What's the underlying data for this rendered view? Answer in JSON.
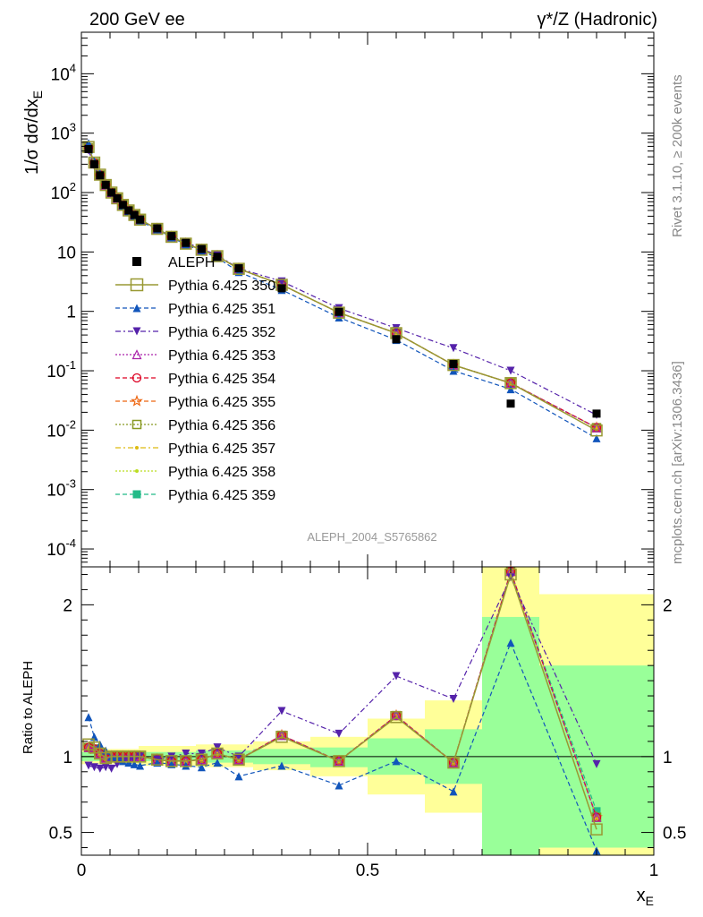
{
  "header": {
    "left": "200 GeV ee",
    "right": "γ*/Z (Hadronic)"
  },
  "side_text": {
    "rivet": "Rivet 3.1.10, ≥ 200k events",
    "mcplots": "mcplots.cern.ch [arXiv:1306.3436]"
  },
  "analysis_label": "ALEPH_2004_S5765862",
  "top_ylabel": "1/σ dσ/dx_E",
  "bottom_ylabel": "Ratio to ALEPH",
  "xlabel": "x_E",
  "colors": {
    "data": "#000000",
    "band_inner": "#99ff99",
    "band_outer": "#ffff99",
    "s350": "#999933",
    "s351": "#1155bb",
    "s352": "#5522aa",
    "s353": "#aa22aa",
    "s354": "#dd0022",
    "s355": "#ee6611",
    "s356": "#889922",
    "s357": "#ddbb11",
    "s358": "#bbdd22",
    "s359": "#22bb88"
  },
  "chart_data": [
    {
      "type": "scatter",
      "panel": "main",
      "xlabel": "x_E",
      "ylabel": "1/σ dσ/dx_E",
      "xlim": [
        0,
        1
      ],
      "ylim": [
        5e-05,
        50000
      ],
      "yscale": "log",
      "x_ticks": [
        "0",
        "0.5",
        "1"
      ],
      "y_ticks": [
        "10^-4",
        "10^-3",
        "10^-2",
        "10^-1",
        "1",
        "10",
        "10^2",
        "10^3",
        "10^4"
      ],
      "x": [
        0.0125,
        0.0225,
        0.0325,
        0.0425,
        0.0525,
        0.0625,
        0.0725,
        0.0825,
        0.0925,
        0.1025,
        0.1325,
        0.1575,
        0.1825,
        0.21,
        0.2375,
        0.275,
        0.35,
        0.45,
        0.55,
        0.65,
        0.75,
        0.9
      ],
      "series": [
        {
          "name": "ALEPH",
          "marker": "square",
          "values": [
            540,
            300,
            195,
            135,
            100,
            80,
            62,
            50,
            42,
            35,
            25,
            18.5,
            14.2,
            11.2,
            8.3,
            5.3,
            2.45,
            0.98,
            0.34,
            0.13,
            0.028,
            0.019
          ]
        },
        {
          "name": "Pythia 6.425 350",
          "marker": "open-square",
          "line": "solid",
          "values": [
            585,
            320,
            200,
            134,
            100,
            80,
            62,
            50,
            42,
            35,
            24.5,
            18.0,
            13.8,
            10.9,
            8.5,
            5.2,
            2.8,
            0.95,
            0.43,
            0.125,
            0.062,
            0.0099
          ]
        },
        {
          "name": "Pythia 6.425 351",
          "marker": "triangle-up",
          "line": "dashed",
          "values": [
            680,
            340,
            210,
            140,
            100,
            80,
            60,
            48,
            40,
            33,
            24,
            17.6,
            13.3,
            10.4,
            8.0,
            4.6,
            2.3,
            0.79,
            0.33,
            0.1,
            0.049,
            0.0073
          ]
        },
        {
          "name": "Pythia 6.425 352",
          "marker": "triangle-down",
          "line": "dash-dot",
          "values": [
            510,
            280,
            180,
            125,
            92,
            76,
            60,
            49,
            41,
            35,
            24.5,
            18.5,
            14.5,
            11.4,
            8.8,
            5.3,
            3.2,
            1.13,
            0.52,
            0.24,
            0.1,
            0.018
          ]
        },
        {
          "name": "Pythia 6.425 353",
          "marker": "open-triangle-up",
          "line": "dotted",
          "values": [
            570,
            315,
            198,
            134,
            100,
            80,
            62,
            50,
            42,
            35,
            24.5,
            18.0,
            13.8,
            10.9,
            8.5,
            5.2,
            2.8,
            0.95,
            0.43,
            0.125,
            0.062,
            0.011
          ]
        },
        {
          "name": "Pythia 6.425 354",
          "marker": "open-circle",
          "line": "dashed",
          "values": [
            570,
            315,
            198,
            134,
            100,
            80,
            62,
            50,
            42,
            35,
            24.5,
            18.0,
            13.8,
            10.9,
            8.5,
            5.2,
            2.8,
            0.95,
            0.43,
            0.125,
            0.062,
            0.011
          ]
        },
        {
          "name": "Pythia 6.425 355",
          "marker": "open-star",
          "line": "dashed",
          "values": [
            570,
            315,
            198,
            134,
            100,
            80,
            62,
            50,
            42,
            35,
            24.5,
            18.0,
            13.8,
            10.9,
            8.5,
            5.2,
            2.8,
            0.95,
            0.43,
            0.125,
            0.062,
            0.011
          ]
        },
        {
          "name": "Pythia 6.425 356",
          "marker": "open-square",
          "line": "dotted",
          "values": [
            570,
            315,
            198,
            134,
            100,
            80,
            62,
            50,
            42,
            35,
            24.5,
            18.0,
            13.8,
            10.9,
            8.5,
            5.2,
            2.8,
            0.95,
            0.43,
            0.125,
            0.062,
            0.011
          ]
        },
        {
          "name": "Pythia 6.425 357",
          "marker": "dot",
          "line": "dash-dot",
          "values": [
            570,
            315,
            198,
            134,
            100,
            80,
            62,
            50,
            42,
            35,
            24.5,
            18.0,
            13.8,
            10.9,
            8.5,
            5.2,
            2.8,
            0.95,
            0.43,
            0.125,
            0.062,
            0.011
          ]
        },
        {
          "name": "Pythia 6.425 358",
          "marker": "dot",
          "line": "dotted",
          "values": [
            570,
            315,
            198,
            134,
            100,
            80,
            62,
            50,
            42,
            35,
            24.5,
            18.0,
            13.8,
            10.9,
            8.5,
            5.2,
            2.8,
            0.95,
            0.43,
            0.125,
            0.062,
            0.011
          ]
        },
        {
          "name": "Pythia 6.425 359",
          "marker": "filled-square",
          "line": "dashed",
          "values": [
            570,
            315,
            198,
            134,
            100,
            80,
            62,
            50,
            42,
            35,
            24.5,
            18.0,
            13.8,
            10.9,
            8.5,
            5.2,
            2.8,
            0.95,
            0.43,
            0.125,
            0.062,
            0.011
          ]
        }
      ]
    },
    {
      "type": "line",
      "panel": "ratio",
      "xlabel": "x_E",
      "ylabel": "Ratio to ALEPH",
      "xlim": [
        0,
        1
      ],
      "ylim": [
        0.35,
        2.25
      ],
      "x_ticks": [
        "0",
        "0.5",
        "1"
      ],
      "y_ticks": [
        "0.5",
        "1",
        "2"
      ],
      "reference_line": 1,
      "bands": [
        {
          "x0": 0.0,
          "x1": 0.1,
          "inner": [
            0.97,
            1.03
          ],
          "outer": [
            0.95,
            1.05
          ]
        },
        {
          "x0": 0.1,
          "x1": 0.2,
          "inner": [
            0.97,
            1.03
          ],
          "outer": [
            0.94,
            1.07
          ]
        },
        {
          "x0": 0.2,
          "x1": 0.3,
          "inner": [
            0.96,
            1.04
          ],
          "outer": [
            0.93,
            1.08
          ]
        },
        {
          "x0": 0.3,
          "x1": 0.4,
          "inner": [
            0.95,
            1.05
          ],
          "outer": [
            0.91,
            1.1
          ]
        },
        {
          "x0": 0.4,
          "x1": 0.5,
          "inner": [
            0.93,
            1.06
          ],
          "outer": [
            0.87,
            1.13
          ]
        },
        {
          "x0": 0.5,
          "x1": 0.6,
          "inner": [
            0.88,
            1.12
          ],
          "outer": [
            0.75,
            1.25
          ]
        },
        {
          "x0": 0.6,
          "x1": 0.7,
          "inner": [
            0.82,
            1.18
          ],
          "outer": [
            0.63,
            1.37
          ]
        },
        {
          "x0": 0.7,
          "x1": 0.8,
          "inner": [
            0.25,
            1.92
          ],
          "outer": [
            0.25,
            2.5
          ]
        },
        {
          "x0": 0.8,
          "x1": 1.0,
          "inner": [
            0.4,
            1.6
          ],
          "outer": [
            0.25,
            2.07
          ]
        }
      ],
      "x": [
        0.0125,
        0.0225,
        0.0325,
        0.0425,
        0.0525,
        0.0625,
        0.0725,
        0.0825,
        0.0925,
        0.1025,
        0.1325,
        0.1575,
        0.1825,
        0.21,
        0.2375,
        0.275,
        0.35,
        0.45,
        0.55,
        0.65,
        0.75,
        0.9
      ],
      "series": [
        {
          "name": "Pythia 6.425 350",
          "values": [
            1.08,
            1.06,
            1.02,
            0.99,
            1.0,
            1.0,
            1.0,
            1.0,
            1.0,
            1.0,
            0.98,
            0.97,
            0.97,
            0.98,
            1.02,
            0.98,
            1.13,
            0.97,
            1.26,
            0.96,
            2.2,
            0.52
          ]
        },
        {
          "name": "Pythia 6.425 351",
          "values": [
            1.26,
            1.13,
            1.08,
            1.04,
            1.0,
            1.0,
            0.97,
            0.96,
            0.95,
            0.94,
            0.96,
            0.95,
            0.94,
            0.93,
            0.96,
            0.87,
            0.94,
            0.81,
            0.97,
            0.77,
            1.75,
            0.38
          ]
        },
        {
          "name": "Pythia 6.425 352",
          "values": [
            0.94,
            0.93,
            0.92,
            0.93,
            0.92,
            0.95,
            0.97,
            0.98,
            0.98,
            1.0,
            0.98,
            1.0,
            1.02,
            1.02,
            1.06,
            1.0,
            1.3,
            1.15,
            1.53,
            1.38,
            2.18,
            0.95
          ]
        },
        {
          "name": "Pythia 6.425 353",
          "values": [
            1.06,
            1.05,
            1.02,
            0.99,
            1.0,
            1.0,
            1.0,
            1.0,
            1.0,
            1.0,
            0.98,
            0.97,
            0.97,
            0.98,
            1.02,
            0.98,
            1.14,
            0.97,
            1.27,
            0.96,
            2.22,
            0.6
          ]
        },
        {
          "name": "Pythia 6.425 354",
          "values": [
            1.06,
            1.05,
            1.02,
            0.99,
            1.0,
            1.0,
            1.0,
            1.0,
            1.0,
            1.0,
            0.98,
            0.97,
            0.97,
            0.98,
            1.02,
            0.98,
            1.14,
            0.97,
            1.27,
            0.96,
            2.22,
            0.6
          ]
        },
        {
          "name": "Pythia 6.425 355",
          "values": [
            1.06,
            1.05,
            1.02,
            0.99,
            1.0,
            1.0,
            1.0,
            1.0,
            1.0,
            1.0,
            0.98,
            0.97,
            0.97,
            0.98,
            1.02,
            0.98,
            1.14,
            0.97,
            1.27,
            0.96,
            2.22,
            0.6
          ]
        },
        {
          "name": "Pythia 6.425 356",
          "values": [
            1.06,
            1.05,
            1.02,
            0.99,
            1.0,
            1.0,
            1.0,
            1.0,
            1.0,
            1.0,
            0.98,
            0.97,
            0.97,
            0.98,
            1.02,
            0.98,
            1.14,
            0.97,
            1.27,
            0.96,
            2.22,
            0.6
          ]
        },
        {
          "name": "Pythia 6.425 357",
          "values": [
            1.06,
            1.05,
            1.02,
            0.99,
            1.0,
            1.0,
            1.0,
            1.0,
            1.0,
            1.0,
            0.98,
            0.97,
            0.97,
            0.98,
            1.02,
            0.98,
            1.14,
            0.97,
            1.27,
            0.96,
            2.22,
            0.6
          ]
        },
        {
          "name": "Pythia 6.425 358",
          "values": [
            1.06,
            1.05,
            1.02,
            0.99,
            1.0,
            1.0,
            1.0,
            1.0,
            1.0,
            1.0,
            0.98,
            0.97,
            0.97,
            0.98,
            1.02,
            0.98,
            1.14,
            0.97,
            1.27,
            0.96,
            2.22,
            0.6
          ]
        },
        {
          "name": "Pythia 6.425 359",
          "values": [
            1.06,
            1.05,
            1.02,
            0.99,
            1.0,
            1.0,
            1.0,
            1.0,
            1.0,
            1.0,
            0.98,
            0.97,
            0.97,
            0.98,
            1.02,
            0.98,
            1.14,
            0.97,
            1.27,
            0.96,
            2.22,
            0.64
          ]
        }
      ]
    }
  ]
}
